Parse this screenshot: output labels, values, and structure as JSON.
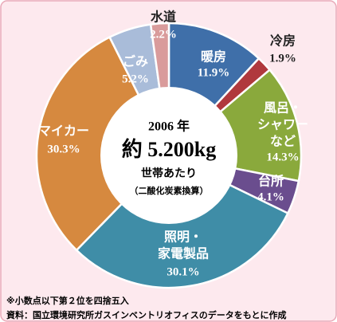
{
  "chart_data": {
    "type": "donut",
    "categories": [
      [
        "暖房"
      ],
      [
        "冷房"
      ],
      [
        "風呂・",
        "シャワー",
        "など"
      ],
      [
        "台所"
      ],
      [
        "照明・",
        "家電製品"
      ],
      [
        "マイカー"
      ],
      [
        "ごみ"
      ],
      [
        "水道"
      ]
    ],
    "values": [
      11.9,
      1.9,
      14.3,
      4.1,
      30.1,
      30.3,
      5.2,
      2.2
    ],
    "value_labels": [
      "11.9%",
      "1.9%",
      "14.3%",
      "4.1%",
      "30.1%",
      "30.3%",
      "5.2%",
      "2.2%"
    ],
    "colors": [
      "#3f6fa9",
      "#b0393d",
      "#8aa93c",
      "#6a4d8e",
      "#3f8da7",
      "#d6893f",
      "#a9bcd9",
      "#d99b9b"
    ],
    "center_text": [
      "2006 年",
      "約 5.200kg",
      "世帯あたり",
      "（二酸化炭素換算）"
    ],
    "notes": [
      "※小数点以下第２位を四捨五入",
      "資料：国立環境研究所ガスインベントリオフィスのデータをもとに作成"
    ]
  }
}
